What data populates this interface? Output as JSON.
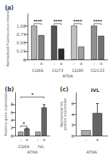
{
  "chart_data": [
    {
      "type": "bar",
      "title": "(a)",
      "categories": [
        "CD66",
        "CD73",
        "CD90",
        "CD133"
      ],
      "series": [
        {
          "name": "-",
          "values": [
            1.0,
            1.0,
            1.0,
            1.0
          ],
          "colors": [
            "#b0b0b0",
            "#555555",
            "#c0c0c0",
            "#909090"
          ]
        },
        {
          "name": "+",
          "values": [
            0.72,
            0.32,
            0.38,
            0.7
          ],
          "colors": [
            "#808080",
            "#2a2a2a",
            "#a0a0a0",
            "#707070"
          ]
        }
      ],
      "xlabel": "ATRA",
      "ylabel": "Normalised Fluorescence Intensity",
      "ylim": [
        0,
        1.35
      ],
      "yticks": [
        0,
        0.25,
        {
          "value": 0.5,
          "label": "0.50"
        },
        0.75,
        {
          "value": 1.0,
          "label": "1.00"
        }
      ],
      "annotations": [
        {
          "text": "****",
          "groups": [
            "CD66"
          ]
        },
        {
          "text": "****",
          "groups": [
            "CD73"
          ]
        },
        {
          "text": "****",
          "groups": [
            "CD90"
          ]
        },
        {
          "text": "****",
          "groups": [
            "CD133"
          ]
        }
      ],
      "grid": false
    },
    {
      "type": "bar",
      "title": "(b)",
      "categories": [
        "CD66",
        "IVL"
      ],
      "series": [
        {
          "name": "-",
          "values": [
            1.0,
            1.0
          ],
          "color": "#aaaaaa"
        },
        {
          "name": "+",
          "values": [
            1.8,
            7.2
          ],
          "errors": [
            0.15,
            0.75
          ],
          "color": "#666666"
        }
      ],
      "xlabel": "ATRA",
      "ylabel": "Relative gene expression",
      "ylim": [
        0,
        11.0
      ],
      "yticks": [
        0,
        2,
        4,
        6,
        8
      ],
      "annotations": [
        {
          "text": "*",
          "groups": [
            "CD66"
          ]
        },
        {
          "text": "*",
          "groups": [
            "CD66",
            "IVL"
          ]
        }
      ],
      "grid": false
    },
    {
      "type": "bar",
      "title": "(c)",
      "subtitle": "IVL",
      "categories": [
        null
      ],
      "series": [
        {
          "name": "-",
          "values": [
            1.0
          ],
          "color": "#aaaaaa"
        },
        {
          "name": "+",
          "values": [
            4.2
          ],
          "errors": [
            1.8
          ],
          "color": "#666666"
        }
      ],
      "xlabel": "ATRA",
      "ylabel": "Normalised IVL\nprotein expression",
      "ylim": [
        0,
        8
      ],
      "yticks": [
        0,
        2,
        4,
        6
      ],
      "grid": false
    }
  ]
}
